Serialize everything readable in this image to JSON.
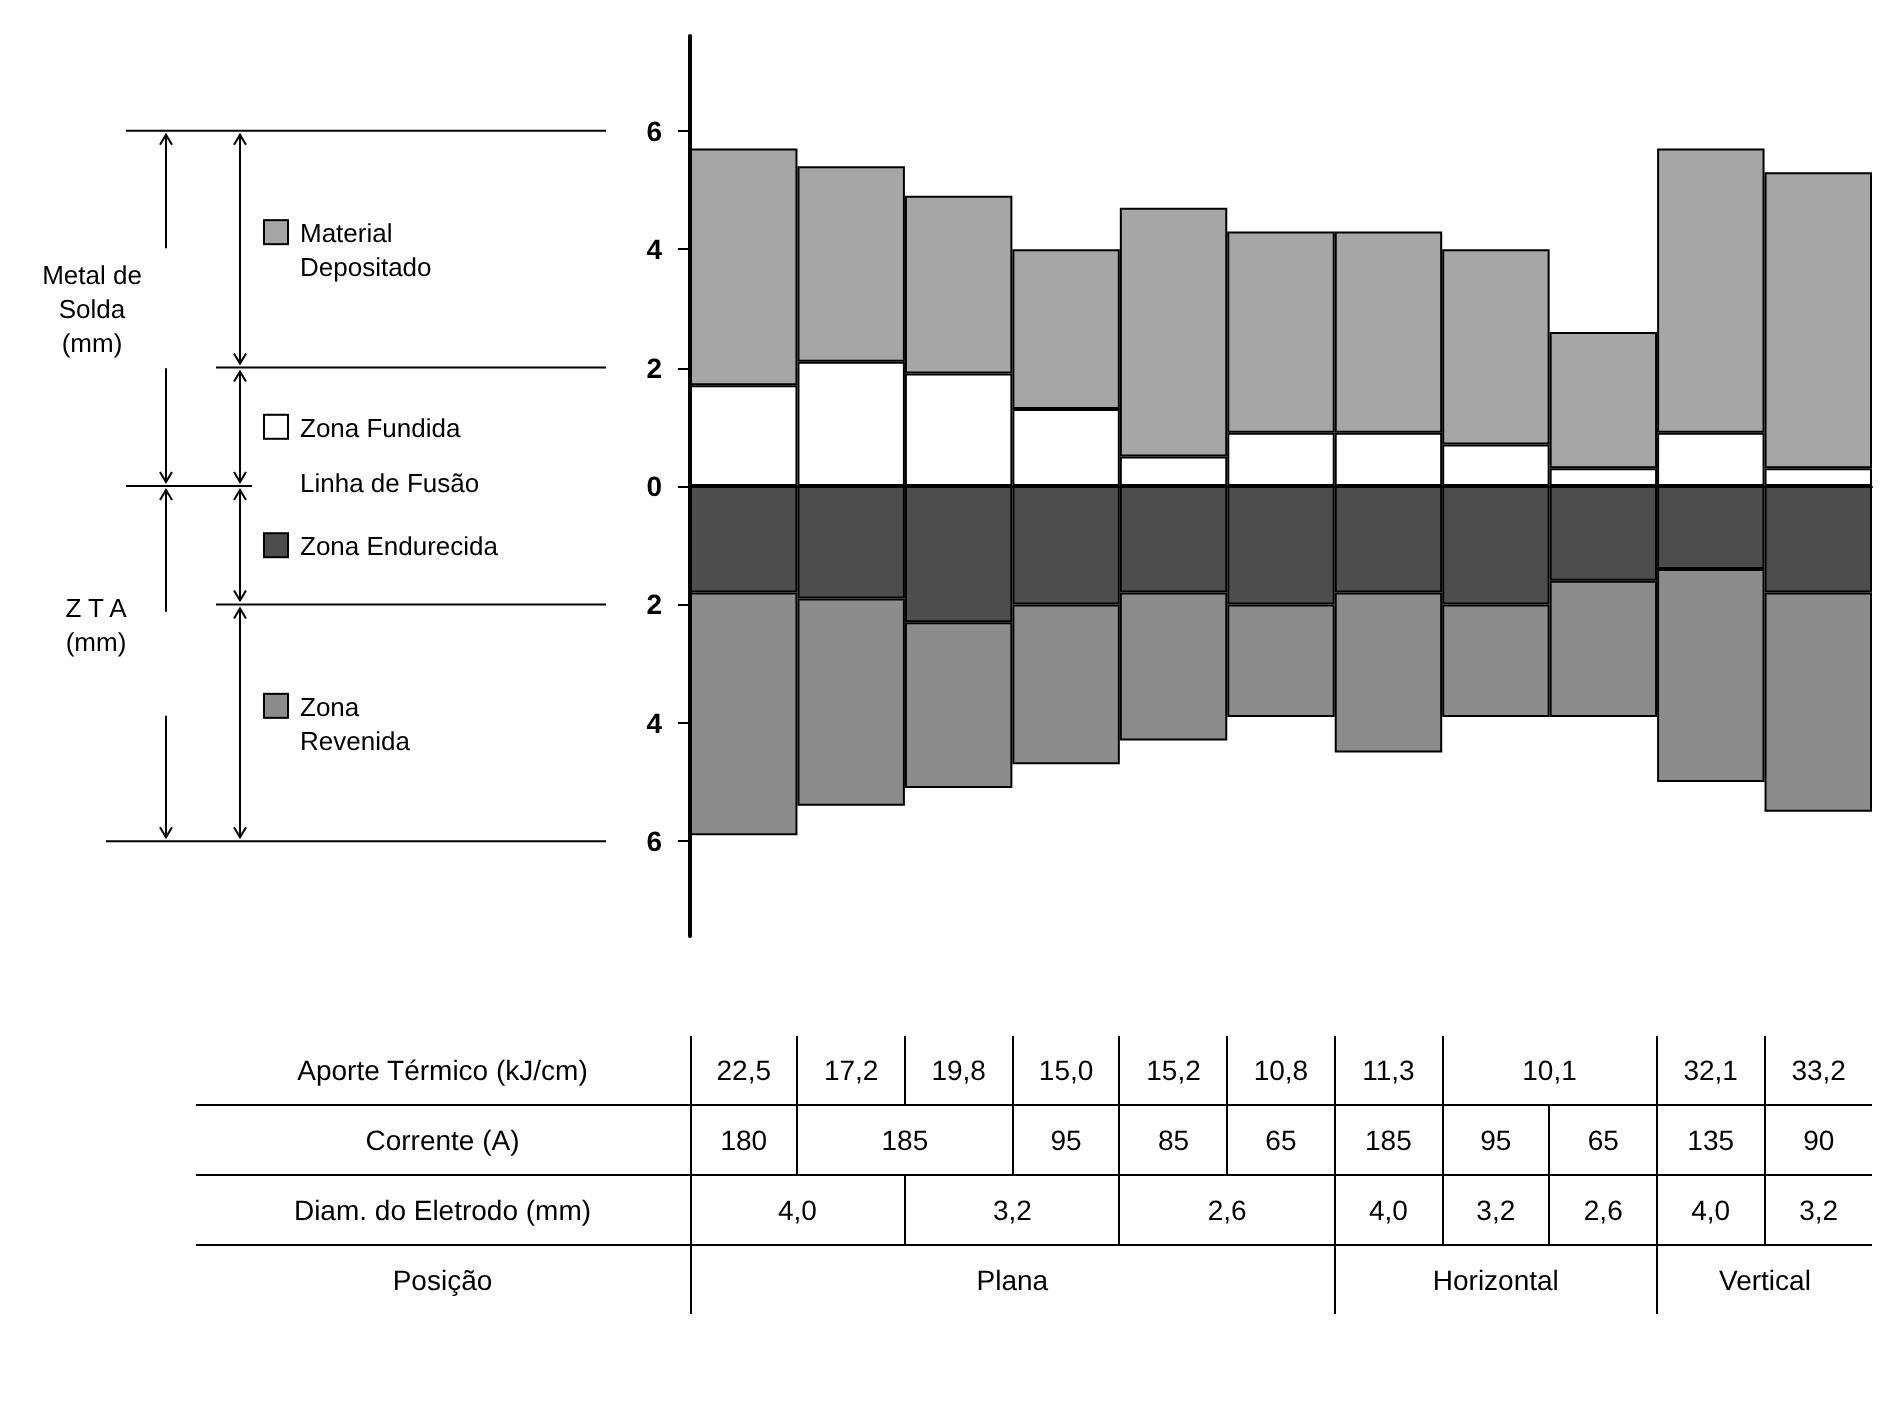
{
  "chart_data": [
    {
      "type": "bar",
      "categories": [
        null,
        null,
        null,
        null,
        null,
        null,
        null,
        null,
        null,
        null,
        null
      ],
      "stacked": true,
      "legend": "left",
      "tick_labels": "y",
      "ylim": [
        -7.6,
        7.6
      ],
      "yticks": [
        {
          "value": 6,
          "label": "6"
        },
        {
          "value": 4,
          "label": "4"
        },
        {
          "value": 2,
          "label": "2"
        },
        {
          "value": 0,
          "label": "0"
        },
        {
          "value": -2,
          "label": "2"
        },
        {
          "value": -4,
          "label": "4"
        },
        {
          "value": -6,
          "label": "6"
        }
      ],
      "annotations": [
        "Metal de Solda (mm)",
        "Linha de Fusão",
        "Z T A (mm)"
      ],
      "series": [
        {
          "name": "Zona Fundida",
          "color": "#ffffff",
          "values": [
            1.7,
            2.1,
            1.9,
            1.3,
            0.5,
            0.9,
            0.9,
            0.7,
            0.3,
            0.9,
            0.3
          ]
        },
        {
          "name": "Material Depositado",
          "color": "#a6a6a6",
          "values": [
            4.0,
            3.3,
            3.0,
            2.7,
            4.2,
            3.4,
            3.4,
            3.3,
            2.3,
            4.8,
            5.0
          ]
        },
        {
          "name": "Zona Endurecida",
          "color": "#4d4d4d",
          "values": [
            -1.8,
            -1.9,
            -2.3,
            -2.0,
            -1.8,
            -2.0,
            -1.8,
            -2.0,
            -1.6,
            -1.4,
            -1.8
          ]
        },
        {
          "name": "Zona Revenida",
          "color": "#8c8c8c",
          "values": [
            -4.1,
            -3.5,
            -2.8,
            -2.7,
            -2.5,
            -1.9,
            -2.7,
            -1.9,
            -2.3,
            -3.6,
            -3.7
          ]
        }
      ]
    },
    {
      "type": "other",
      "y_categories": [
        "Aporte Térmico (kJ/cm)",
        "Corrente (A)",
        "Diam. do Eletrodo (mm)",
        "Posição"
      ],
      "cell_labels": [
        [
          "22,5",
          "17,2",
          "19,8",
          "15,0",
          "15,2",
          "10,8",
          "11,3",
          "10,1",
          null,
          "32,1",
          "33,2"
        ],
        [
          "180",
          "185",
          null,
          "95",
          "85",
          "65",
          "185",
          "95",
          "65",
          "135",
          "90"
        ],
        [
          "4,0",
          null,
          "3,2",
          null,
          "2,6",
          null,
          "4,0",
          "3,2",
          "2,6",
          "4,0",
          "3,2"
        ],
        [
          "Plana",
          null,
          null,
          null,
          null,
          null,
          "Horizontal",
          null,
          null,
          "Vertical",
          null
        ]
      ]
    }
  ]
}
